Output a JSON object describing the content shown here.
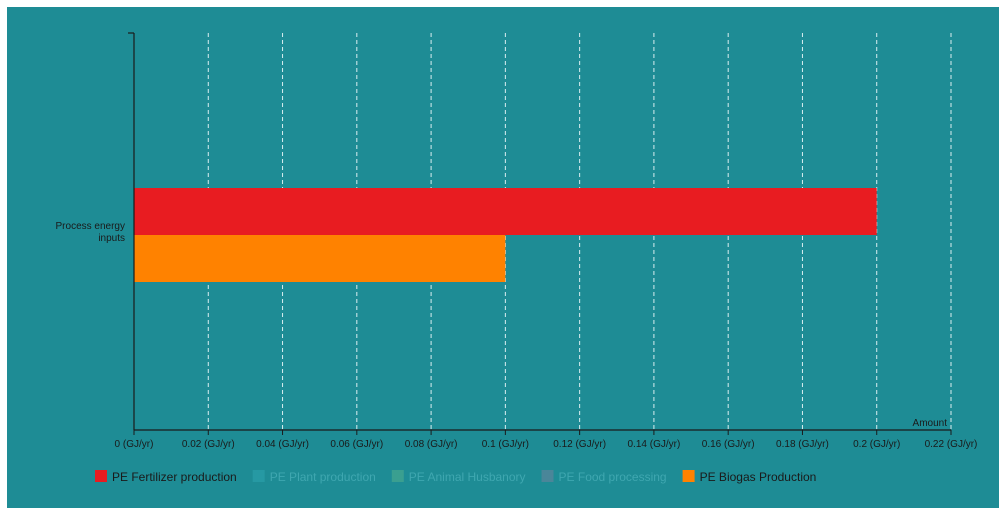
{
  "chart_data": {
    "type": "bar",
    "orientation": "horizontal",
    "categories": [
      "Process energy inputs"
    ],
    "series": [
      {
        "name": "PE Fertilizer production",
        "values": [
          0.2
        ],
        "color": "#e81c21",
        "active": true
      },
      {
        "name": "PE Plant production",
        "values": [
          0
        ],
        "color": "#2699a3",
        "active": false
      },
      {
        "name": "PE Animal Husbanory",
        "values": [
          0
        ],
        "color": "#3a9f90",
        "active": false
      },
      {
        "name": "PE Food processing",
        "values": [
          0
        ],
        "color": "#4a8699",
        "active": false
      },
      {
        "name": "PE Biogas Production",
        "values": [
          0.1
        ],
        "color": "#ff8200",
        "active": true
      }
    ],
    "xlabel": "Amount",
    "ylabel": "",
    "xlim": [
      0,
      0.22
    ],
    "x_ticks": [
      "0 (GJ/yr)",
      "0.02 (GJ/yr)",
      "0.04 (GJ/yr)",
      "0.06 (GJ/yr)",
      "0.08 (GJ/yr)",
      "0.1 (GJ/yr)",
      "0.12 (GJ/yr)",
      "0.14 (GJ/yr)",
      "0.16 (GJ/yr)",
      "0.18 (GJ/yr)",
      "0.2 (GJ/yr)",
      "0.22 (GJ/yr)"
    ],
    "grid": true,
    "legend_position": "bottom-left"
  },
  "colors": {
    "background": "#1e8c95",
    "axis": "#1a1a1a",
    "grid": "#d9eef0",
    "text": "#1a1a1a",
    "inactive_text": "#3fa7b0"
  }
}
